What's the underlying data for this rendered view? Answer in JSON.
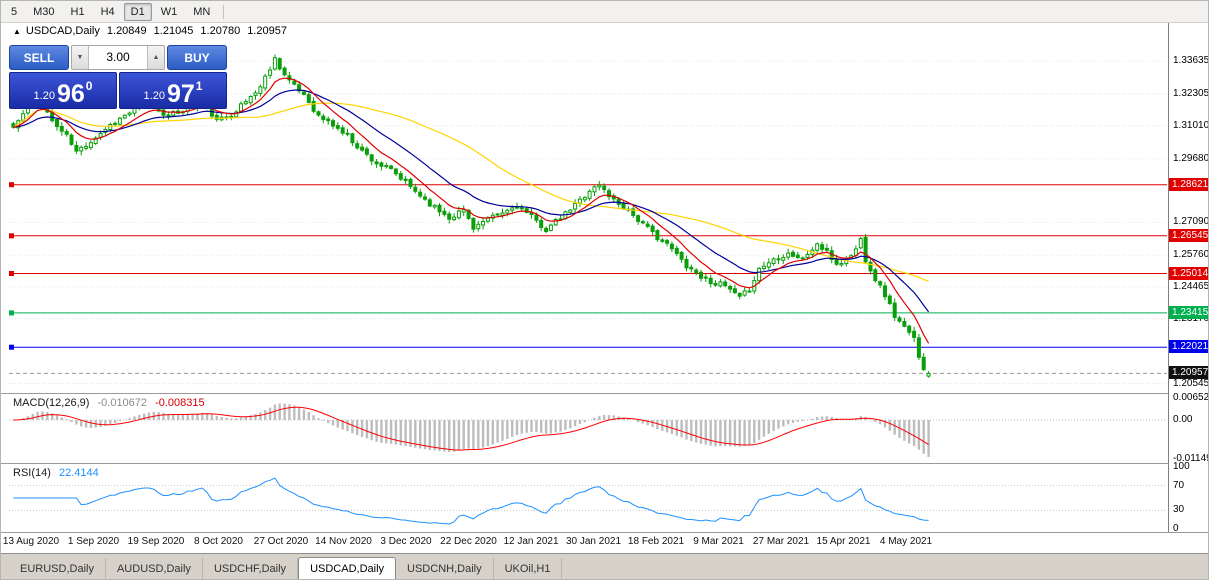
{
  "icons": {
    "chart_marker": "▲",
    "stepper_down": "▼",
    "stepper_up": "▲"
  },
  "toolbar": {
    "timeframes": [
      {
        "label": "5",
        "active": false
      },
      {
        "label": "M30",
        "active": false
      },
      {
        "label": "H1",
        "active": false
      },
      {
        "label": "H4",
        "active": false
      },
      {
        "label": "D1",
        "active": true
      },
      {
        "label": "W1",
        "active": false
      },
      {
        "label": "MN",
        "active": false
      }
    ]
  },
  "chart_header": {
    "symbol": "USDCAD,Daily",
    "open": "1.20849",
    "high": "1.21045",
    "low": "1.20780",
    "close": "1.20957"
  },
  "trade_panel": {
    "sell_label": "SELL",
    "buy_label": "BUY",
    "volume": "3.00",
    "bid_prefix": "1.20",
    "bid_big": "96",
    "bid_sup": "0",
    "ask_prefix": "1.20",
    "ask_big": "97",
    "ask_sup": "1"
  },
  "price_axis": {
    "labels": [
      {
        "text": "1.33635",
        "price": 1.33635
      },
      {
        "text": "1.32305",
        "price": 1.32305
      },
      {
        "text": "1.31010",
        "price": 1.3101
      },
      {
        "text": "1.29680",
        "price": 1.2968
      },
      {
        "text": "1.27090",
        "price": 1.2709
      },
      {
        "text": "1.25760",
        "price": 1.2576
      },
      {
        "text": "1.24465",
        "price": 1.24465
      },
      {
        "text": "1.23170",
        "price": 1.2317
      },
      {
        "text": "1.20545",
        "price": 1.20545
      }
    ]
  },
  "levels": [
    {
      "label": "1.28621",
      "price": 1.28621,
      "color": "#e00000"
    },
    {
      "label": "1.26545",
      "price": 1.26545,
      "color": "#e00000"
    },
    {
      "label": "1.25014",
      "price": 1.25014,
      "color": "#e00000"
    },
    {
      "label": "1.23415",
      "price": 1.23415,
      "color": "#00b050"
    },
    {
      "label": "1.22021",
      "price": 1.22021,
      "color": "#0000f0"
    }
  ],
  "current_price": {
    "label": "1.20957",
    "price": 1.20957,
    "badge": "#111111",
    "line_color": "#999999"
  },
  "macd_panel": {
    "title": "MACD(12,26,9)",
    "value_main": "-0.010672",
    "value_signal": "-0.008315",
    "fast": 12,
    "slow": 26,
    "signal": 9,
    "hist_color": "#bdbdbd",
    "signal_color": "#ff0000",
    "ylim": [
      -0.0118,
      0.0068
    ],
    "axis_labels": [
      {
        "text": "0.006521",
        "value": 0.006521
      },
      {
        "text": "0.00",
        "value": 0
      },
      {
        "text": "-0.01149",
        "value": -0.01149
      }
    ]
  },
  "rsi_panel": {
    "title": "RSI(14)",
    "value": "22.4144",
    "period": 14,
    "line_color": "#1e90ff",
    "levels": [
      70,
      30
    ],
    "axis_labels": [
      {
        "text": "100",
        "value": 100
      },
      {
        "text": "70",
        "value": 70
      },
      {
        "text": "30",
        "value": 30
      },
      {
        "text": "0",
        "value": 0
      }
    ]
  },
  "chart_data": {
    "type": "candlestick",
    "symbol": "USDCAD",
    "timeframe": "Daily",
    "ohlc_display": {
      "open": 1.20849,
      "high": 1.21045,
      "low": 1.2078,
      "close": 1.20957
    },
    "ylim": [
      1.202,
      1.3446
    ],
    "num_candles": 190,
    "candle_color": "#0a9e0a",
    "up_fill": "#ffffff",
    "noise": 0.0011,
    "wick": 0.0015,
    "seed": 11,
    "close_anchors": [
      [
        0,
        1.3095
      ],
      [
        3,
        1.3175
      ],
      [
        5,
        1.323
      ],
      [
        8,
        1.312
      ],
      [
        11,
        1.306
      ],
      [
        13,
        1.2995
      ],
      [
        16,
        1.304
      ],
      [
        20,
        1.3105
      ],
      [
        24,
        1.3155
      ],
      [
        28,
        1.3195
      ],
      [
        32,
        1.314
      ],
      [
        36,
        1.3175
      ],
      [
        39,
        1.3205
      ],
      [
        42,
        1.312
      ],
      [
        45,
        1.315
      ],
      [
        48,
        1.32
      ],
      [
        51,
        1.326
      ],
      [
        54,
        1.3375
      ],
      [
        56,
        1.331
      ],
      [
        58,
        1.326
      ],
      [
        60,
        1.323
      ],
      [
        63,
        1.314
      ],
      [
        66,
        1.3105
      ],
      [
        69,
        1.306
      ],
      [
        72,
        1.3
      ],
      [
        75,
        1.295
      ],
      [
        78,
        1.292
      ],
      [
        81,
        1.287
      ],
      [
        84,
        1.282
      ],
      [
        87,
        1.277
      ],
      [
        90,
        1.273
      ],
      [
        93,
        1.276
      ],
      [
        95,
        1.269
      ],
      [
        98,
        1.272
      ],
      [
        101,
        1.2745
      ],
      [
        104,
        1.278
      ],
      [
        107,
        1.273
      ],
      [
        110,
        1.268
      ],
      [
        113,
        1.2725
      ],
      [
        116,
        1.278
      ],
      [
        119,
        1.284
      ],
      [
        121,
        1.286
      ],
      [
        124,
        1.28
      ],
      [
        127,
        1.276
      ],
      [
        130,
        1.27
      ],
      [
        133,
        1.265
      ],
      [
        136,
        1.26
      ],
      [
        139,
        1.2535
      ],
      [
        142,
        1.249
      ],
      [
        144,
        1.247
      ],
      [
        147,
        1.245
      ],
      [
        150,
        1.24
      ],
      [
        152,
        1.244
      ],
      [
        154,
        1.252
      ],
      [
        157,
        1.256
      ],
      [
        160,
        1.2585
      ],
      [
        163,
        1.256
      ],
      [
        166,
        1.262
      ],
      [
        168,
        1.2585
      ],
      [
        170,
        1.254
      ],
      [
        172,
        1.2555
      ],
      [
        174,
        1.26
      ],
      [
        175,
        1.264
      ],
      [
        176,
        1.256
      ],
      [
        178,
        1.248
      ],
      [
        180,
        1.2415
      ],
      [
        182,
        1.233
      ],
      [
        184,
        1.228
      ],
      [
        186,
        1.2235
      ],
      [
        187,
        1.217
      ],
      [
        188,
        1.212
      ],
      [
        189,
        1.20957
      ]
    ],
    "moving_averages": [
      {
        "type": "sma",
        "period": 45,
        "color": "#ffd400"
      },
      {
        "type": "ema",
        "period": 20,
        "color": "#000099"
      },
      {
        "type": "ema",
        "period": 8,
        "color": "#e00000"
      }
    ],
    "x_labels": [
      "13 Aug 2020",
      "1 Sep 2020",
      "19 Sep 2020",
      "8 Oct 2020",
      "27 Oct 2020",
      "14 Nov 2020",
      "3 Dec 2020",
      "22 Dec 2020",
      "12 Jan 2021",
      "30 Jan 2021",
      "18 Feb 2021",
      "9 Mar 2021",
      "27 Mar 2021",
      "15 Apr 2021",
      "4 May 2021"
    ]
  },
  "bottom_tabs": {
    "tabs": [
      {
        "label": "EURUSD,Daily",
        "active": false
      },
      {
        "label": "AUDUSD,Daily",
        "active": false
      },
      {
        "label": "USDCHF,Daily",
        "active": false
      },
      {
        "label": "USDCAD,Daily",
        "active": true
      },
      {
        "label": "USDCNH,Daily",
        "active": false
      },
      {
        "label": "UKOil,H1",
        "active": false
      }
    ]
  }
}
